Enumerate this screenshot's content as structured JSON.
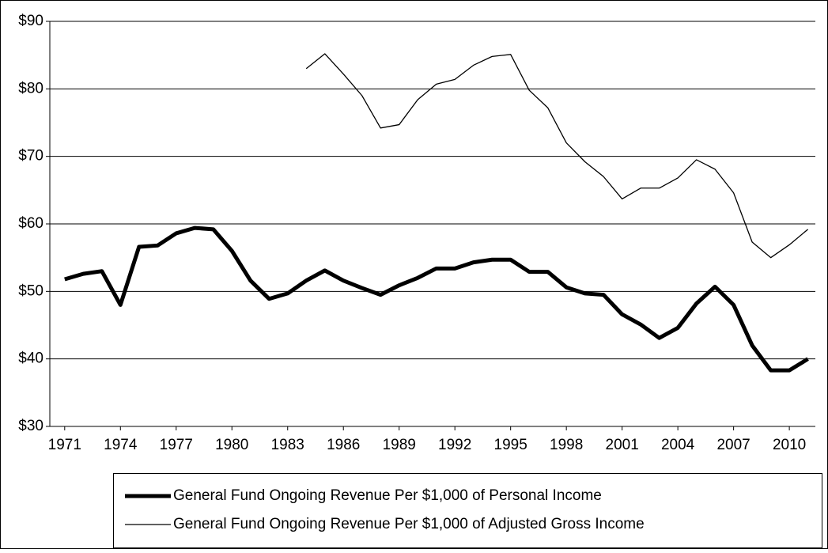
{
  "chart_data": {
    "type": "line",
    "x": [
      1971,
      1972,
      1973,
      1974,
      1975,
      1976,
      1977,
      1978,
      1979,
      1980,
      1981,
      1982,
      1983,
      1984,
      1985,
      1986,
      1987,
      1988,
      1989,
      1990,
      1991,
      1992,
      1993,
      1994,
      1995,
      1996,
      1997,
      1998,
      1999,
      2000,
      2001,
      2002,
      2003,
      2004,
      2005,
      2006,
      2007,
      2008,
      2009,
      2010,
      2011
    ],
    "series": [
      {
        "name": "General Fund Ongoing Revenue Per $1,000 of Personal Income",
        "color": "#000000",
        "width": 5,
        "values": [
          51.8,
          52.6,
          53.0,
          48.0,
          56.6,
          56.8,
          58.6,
          59.4,
          59.2,
          56.0,
          51.6,
          48.9,
          49.7,
          51.6,
          53.1,
          51.6,
          50.5,
          49.5,
          50.9,
          52.0,
          53.4,
          53.4,
          54.3,
          54.7,
          54.7,
          52.9,
          52.9,
          50.6,
          49.7,
          49.5,
          46.6,
          45.1,
          43.1,
          44.6,
          48.2,
          50.7,
          48.0,
          42.0,
          38.3,
          38.3,
          40.0
        ]
      },
      {
        "name": "General Fund Ongoing Revenue Per $1,000 of Adjusted Gross Income",
        "color": "#000000",
        "width": 1.3,
        "values": [
          null,
          null,
          null,
          null,
          null,
          null,
          null,
          null,
          null,
          null,
          null,
          null,
          null,
          83.0,
          85.2,
          82.2,
          79.0,
          74.2,
          74.7,
          78.4,
          80.7,
          81.4,
          83.5,
          84.8,
          85.1,
          79.8,
          77.2,
          72.0,
          69.2,
          67.0,
          63.7,
          65.3,
          65.3,
          66.8,
          69.5,
          68.1,
          64.6,
          57.3,
          55.0,
          56.9,
          59.2
        ]
      }
    ],
    "xlim": [
      1970.2,
      2011.4
    ],
    "xticks": [
      1971,
      1974,
      1977,
      1980,
      1983,
      1986,
      1989,
      1992,
      1995,
      1998,
      2001,
      2004,
      2007,
      2010
    ],
    "ylim": [
      30,
      90
    ],
    "yticks": [
      {
        "value": 30,
        "label": "$30"
      },
      {
        "value": 40,
        "label": "$40"
      },
      {
        "value": 50,
        "label": "$50"
      },
      {
        "value": 60,
        "label": "$60"
      },
      {
        "value": 70,
        "label": "$70"
      },
      {
        "value": 80,
        "label": "$80"
      },
      {
        "value": 90,
        "label": "$90"
      }
    ],
    "grid": true,
    "legend": "bottom"
  }
}
